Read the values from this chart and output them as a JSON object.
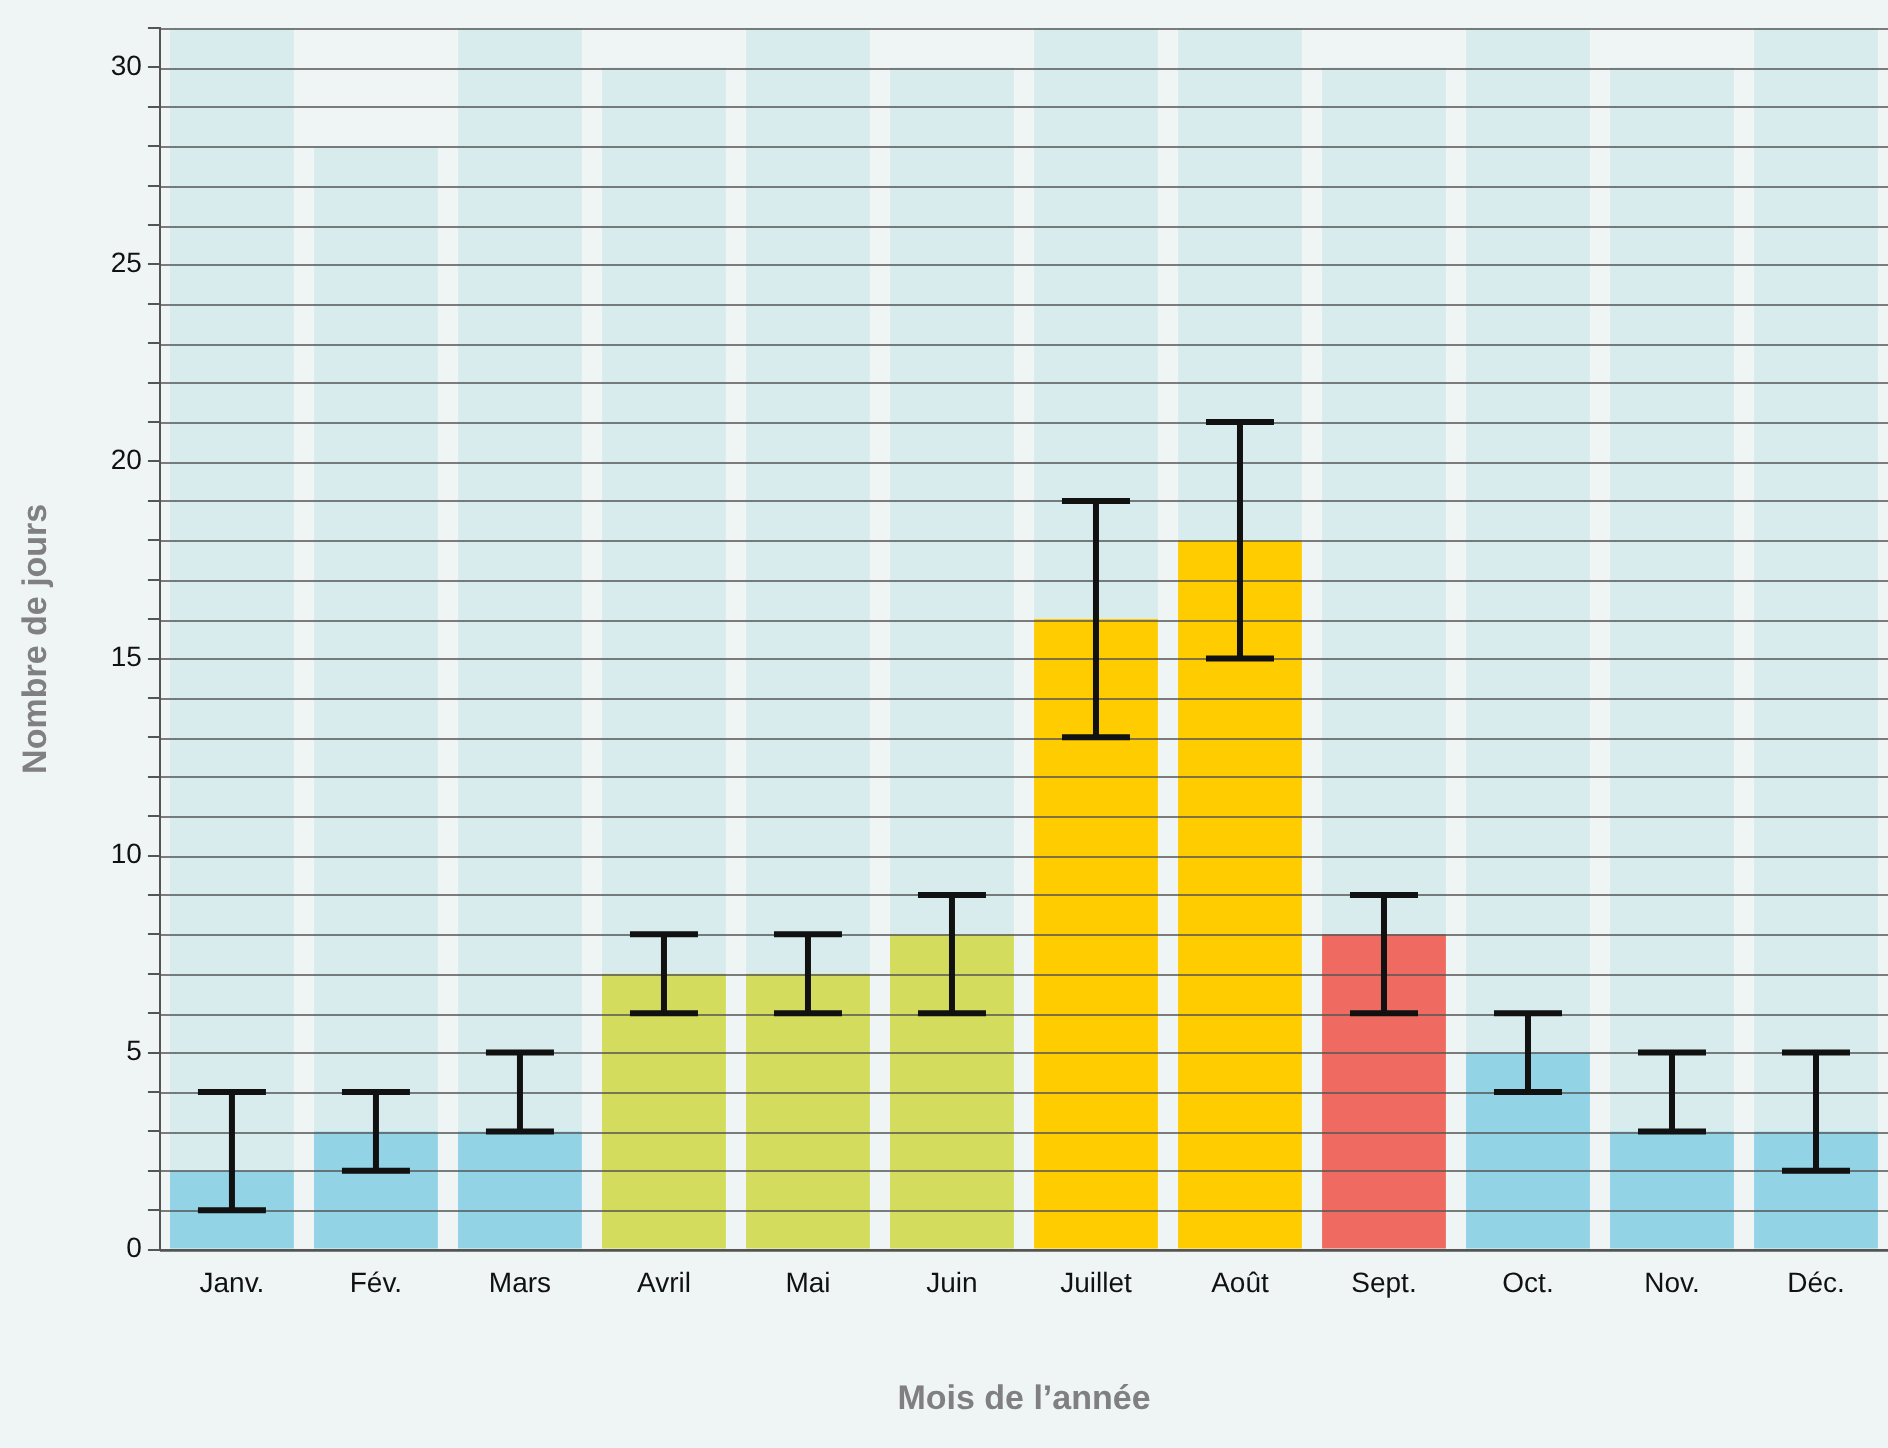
{
  "chart_data": {
    "type": "bar",
    "xlabel": "Mois de l’année",
    "ylabel": "Nombre de jours",
    "categories": [
      "Janv.",
      "Fév.",
      "Mars",
      "Avril",
      "Mai",
      "Juin",
      "Juillet",
      "Août",
      "Sept.",
      "Oct.",
      "Nov.",
      "Déc."
    ],
    "series": [
      {
        "colors": [
          "#92d3e6",
          "#92d3e6",
          "#92d3e6",
          "#d4dc5e",
          "#d4dc5e",
          "#d4dc5e",
          "#ffcc00",
          "#ffcc00",
          "#ef6b62",
          "#92d3e6",
          "#92d3e6",
          "#92d3e6"
        ],
        "values": [
          2,
          3,
          3,
          7,
          7,
          8,
          16,
          18,
          8,
          5,
          3,
          3
        ],
        "errors": [
          [
            1,
            4
          ],
          [
            2,
            4
          ],
          [
            3,
            5
          ],
          [
            6,
            8
          ],
          [
            6,
            8
          ],
          [
            6,
            9
          ],
          [
            13,
            19
          ],
          [
            15,
            21
          ],
          [
            6,
            9
          ],
          [
            4,
            6
          ],
          [
            3,
            5
          ],
          [
            2,
            5
          ]
        ]
      },
      {
        "color": "#d8ecee",
        "values": [
          29,
          25,
          28,
          23,
          24,
          22,
          15,
          13,
          22,
          26,
          27,
          28
        ]
      }
    ],
    "stacked": true,
    "ylim": [
      0,
      31
    ],
    "yticks": [
      0,
      {
        "value": 1,
        "label": null
      },
      {
        "value": 2,
        "label": null
      },
      {
        "value": 3,
        "label": null
      },
      {
        "value": 4,
        "label": null
      },
      5,
      {
        "value": 6,
        "label": null
      },
      {
        "value": 7,
        "label": null
      },
      {
        "value": 8,
        "label": null
      },
      {
        "value": 9,
        "label": null
      },
      10,
      {
        "value": 11,
        "label": null
      },
      {
        "value": 12,
        "label": null
      },
      {
        "value": 13,
        "label": null
      },
      {
        "value": 14,
        "label": null
      },
      15,
      {
        "value": 16,
        "label": null
      },
      {
        "value": 17,
        "label": null
      },
      {
        "value": 18,
        "label": null
      },
      {
        "value": 19,
        "label": null
      },
      20,
      {
        "value": 21,
        "label": null
      },
      {
        "value": 22,
        "label": null
      },
      {
        "value": 23,
        "label": null
      },
      {
        "value": 24,
        "label": null
      },
      25,
      {
        "value": 26,
        "label": null
      },
      {
        "value": 27,
        "label": null
      },
      {
        "value": 28,
        "label": null
      },
      {
        "value": 29,
        "label": null
      },
      30,
      {
        "value": 31,
        "label": null
      }
    ],
    "grid": "y"
  }
}
